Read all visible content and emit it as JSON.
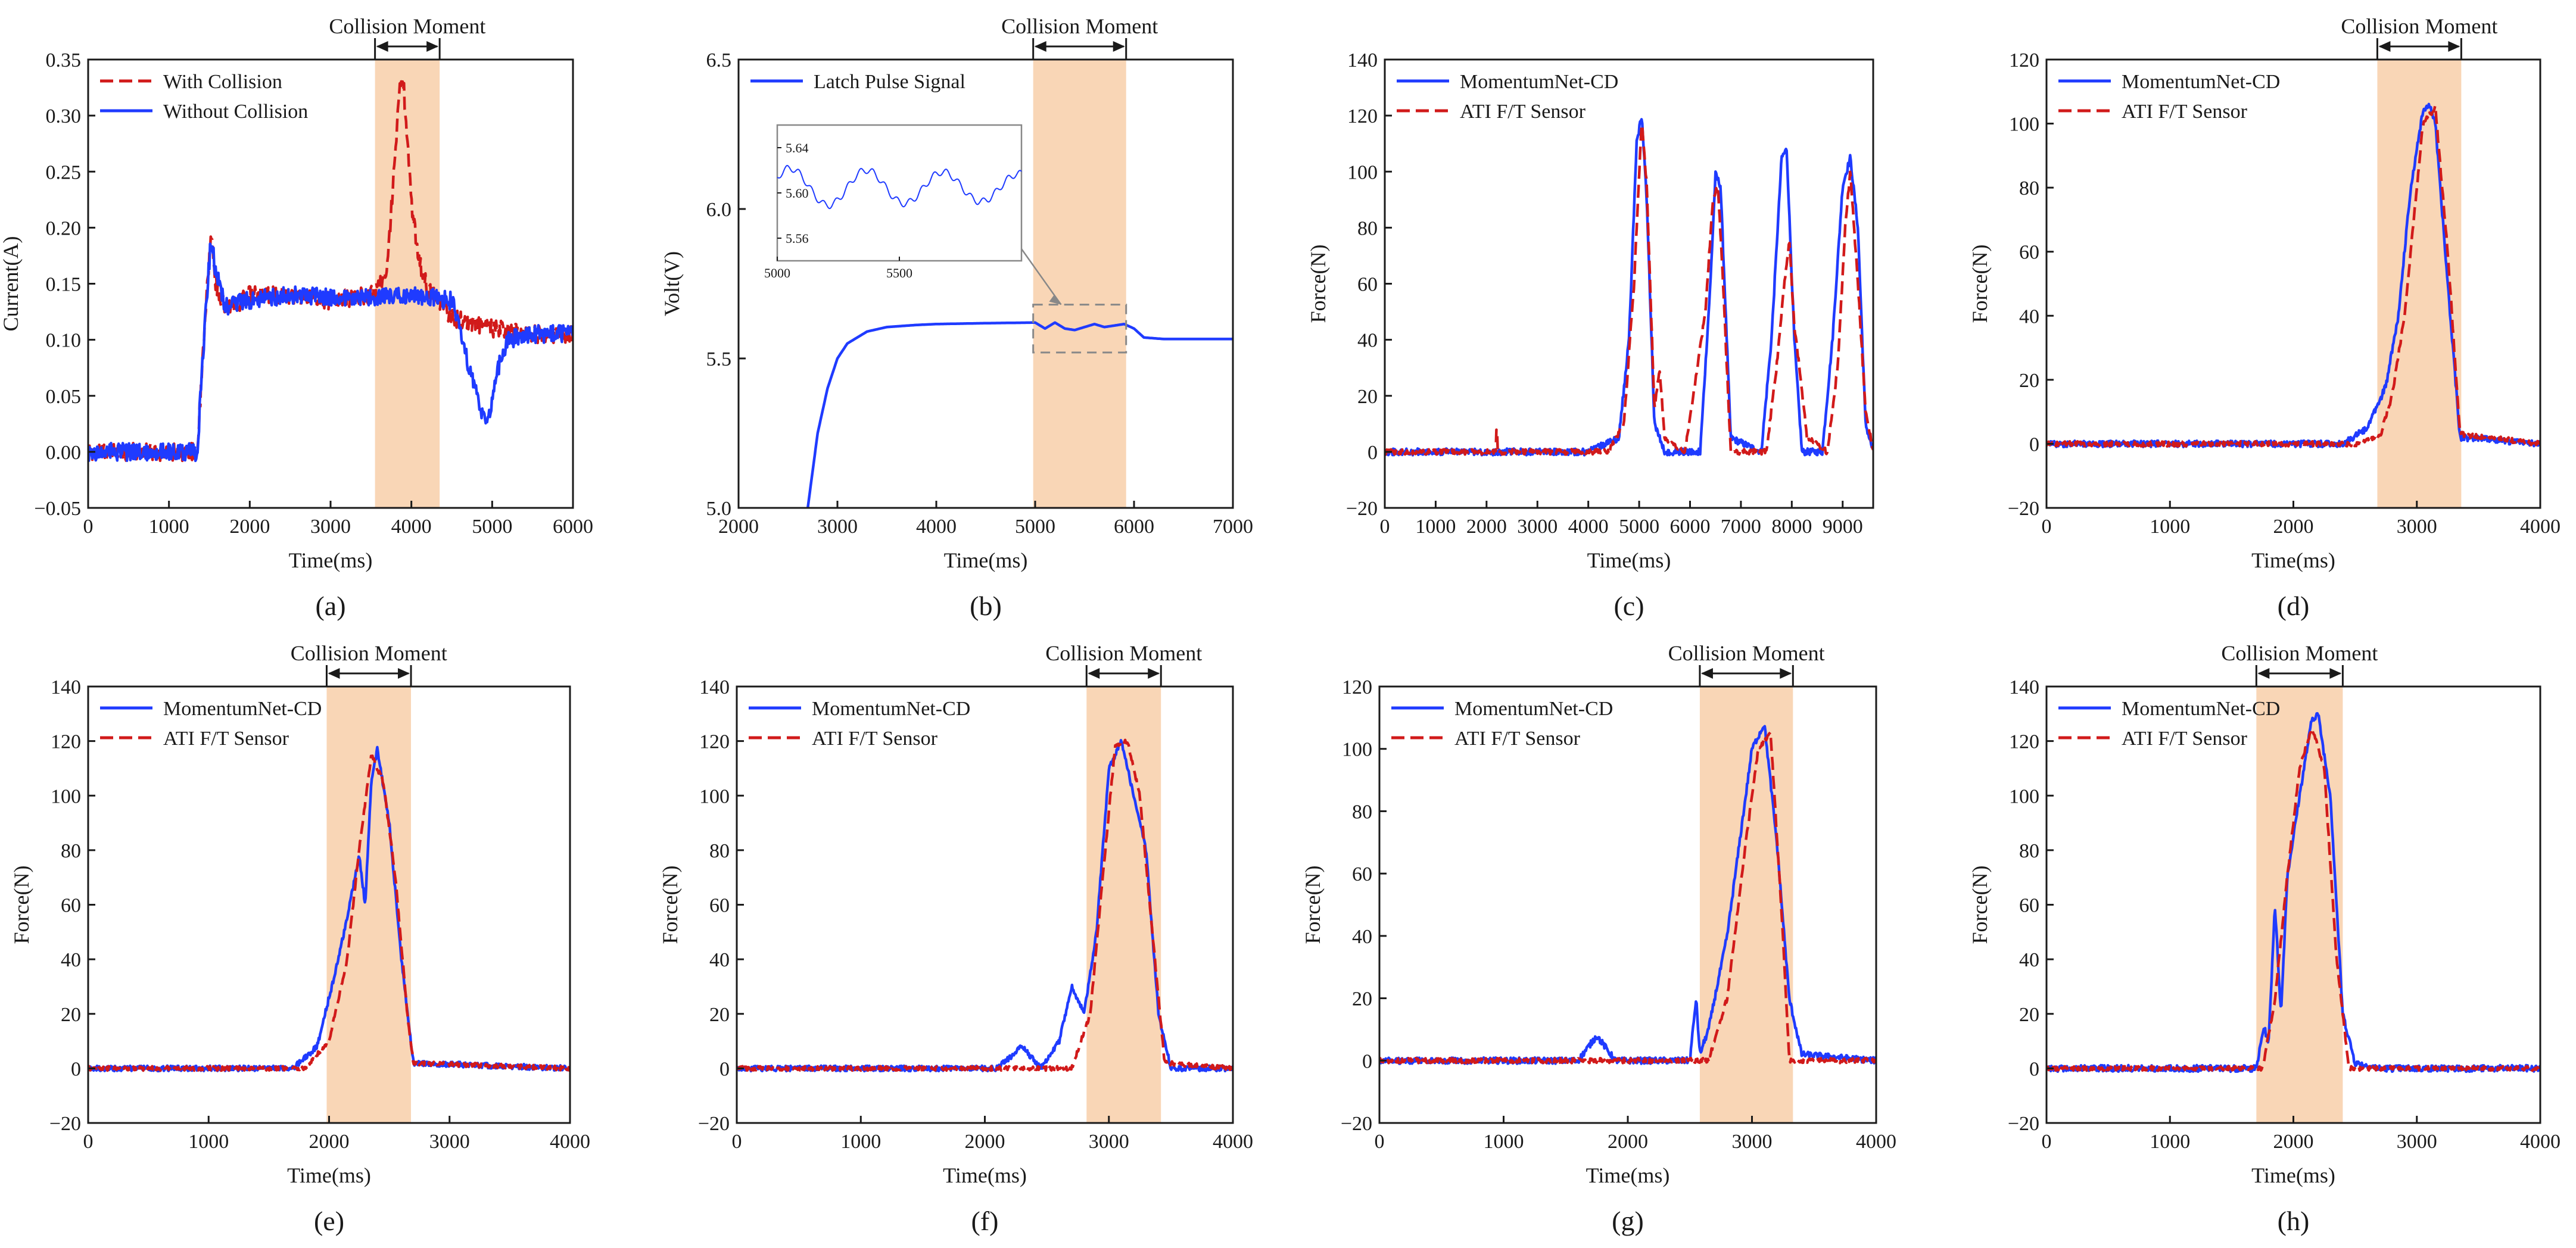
{
  "figure": {
    "background": "#ffffff"
  },
  "colors": {
    "blue": "#1f3bff",
    "red": "#d11a1a",
    "shade": "#f9d6b6",
    "axis": "#1a1a1a",
    "inset_box": "#888888"
  },
  "chart_data": [
    {
      "id": "a",
      "type": "line",
      "panel_label": "(a)",
      "xlabel": "Time(ms)",
      "ylabel": "Current(A)",
      "xlim": [
        0,
        6000
      ],
      "ylim": [
        -0.05,
        0.35
      ],
      "xticks": [
        0,
        1000,
        2000,
        3000,
        4000,
        5000,
        6000
      ],
      "yticks": [
        -0.05,
        0.0,
        0.05,
        0.1,
        0.15,
        0.2,
        0.25,
        0.3,
        0.35
      ],
      "ytick_labels": [
        "−0.05",
        "0.00",
        "0.05",
        "0.10",
        "0.15",
        "0.20",
        "0.25",
        "0.30",
        "0.35"
      ],
      "collision": {
        "label": "Collision Moment",
        "start": 3550,
        "end": 4350
      },
      "legend": {
        "position": "top-left",
        "entries": [
          "With Collision",
          "Without Collision"
        ]
      },
      "series": [
        {
          "name": "With Collision",
          "color": "red",
          "style": "dashed",
          "x": [
            0,
            500,
            1000,
            1350,
            1450,
            1520,
            1580,
            1700,
            2000,
            2500,
            3000,
            3500,
            3700,
            3800,
            3850,
            3900,
            3950,
            4000,
            4100,
            4200,
            4300,
            4500,
            5000,
            5500,
            6000
          ],
          "y": [
            0.0,
            0.0,
            0.0,
            0.0,
            0.12,
            0.195,
            0.15,
            0.125,
            0.14,
            0.14,
            0.135,
            0.14,
            0.16,
            0.27,
            0.32,
            0.33,
            0.28,
            0.22,
            0.17,
            0.145,
            0.14,
            0.12,
            0.11,
            0.105,
            0.105
          ],
          "noise": 0.008
        },
        {
          "name": "Without Collision",
          "color": "blue",
          "style": "solid",
          "x": [
            0,
            500,
            1000,
            1350,
            1450,
            1520,
            1580,
            1700,
            2000,
            2500,
            3000,
            3500,
            4000,
            4500,
            4700,
            4850,
            4950,
            5050,
            5200,
            5500,
            6000
          ],
          "y": [
            0.0,
            0.0,
            0.0,
            0.0,
            0.12,
            0.19,
            0.16,
            0.13,
            0.135,
            0.14,
            0.138,
            0.138,
            0.14,
            0.135,
            0.08,
            0.04,
            0.025,
            0.07,
            0.1,
            0.105,
            0.105
          ],
          "noise": 0.008
        }
      ]
    },
    {
      "id": "b",
      "type": "line",
      "panel_label": "(b)",
      "xlabel": "Time(ms)",
      "ylabel": "Volt(V)",
      "xlim": [
        2000,
        7000
      ],
      "ylim": [
        5.0,
        6.5
      ],
      "xticks": [
        2000,
        3000,
        4000,
        5000,
        6000,
        7000
      ],
      "yticks": [
        5.0,
        5.5,
        6.0,
        6.5
      ],
      "ytick_labels": [
        "5.0",
        "5.5",
        "6.0",
        "6.5"
      ],
      "collision": {
        "label": "Collision Moment",
        "start": 4980,
        "end": 5920
      },
      "legend": {
        "position": "top-left",
        "entries": [
          "Latch Pulse Signal"
        ]
      },
      "series": [
        {
          "name": "Latch Pulse Signal",
          "color": "blue",
          "style": "solid",
          "x": [
            2700,
            2800,
            2900,
            3000,
            3100,
            3300,
            3500,
            3800,
            4000,
            4500,
            5000,
            5100,
            5200,
            5300,
            5400,
            5500,
            5600,
            5700,
            5800,
            5900,
            6000,
            6100,
            6300,
            6600,
            7000
          ],
          "y": [
            5.0,
            5.25,
            5.4,
            5.5,
            5.55,
            5.59,
            5.605,
            5.612,
            5.615,
            5.618,
            5.62,
            5.6,
            5.62,
            5.6,
            5.595,
            5.605,
            5.615,
            5.605,
            5.61,
            5.615,
            5.6,
            5.57,
            5.565,
            5.565,
            5.565
          ],
          "noise": 0
        }
      ],
      "inset": {
        "xlim": [
          5000,
          6000
        ],
        "ylim": [
          5.54,
          5.66
        ],
        "xticks": [
          5000,
          5500
        ],
        "yticks": [
          5.56,
          5.6,
          5.64
        ],
        "ytick_labels": [
          "5.56",
          "5.60",
          "5.64"
        ],
        "zoom_box": {
          "x": [
            4980,
            5920
          ],
          "y": [
            5.52,
            5.68
          ]
        }
      }
    },
    {
      "id": "c",
      "type": "line",
      "panel_label": "(c)",
      "xlabel": "Time(ms)",
      "ylabel": "Force(N)",
      "xlim": [
        0,
        9600
      ],
      "ylim": [
        -20,
        140
      ],
      "xticks": [
        0,
        1000,
        2000,
        3000,
        4000,
        5000,
        6000,
        7000,
        8000,
        9000
      ],
      "yticks": [
        -20,
        0,
        20,
        40,
        60,
        80,
        100,
        120,
        140
      ],
      "ytick_labels": [
        "−20",
        "0",
        "20",
        "40",
        "60",
        "80",
        "100",
        "120",
        "140"
      ],
      "legend": {
        "position": "top-left",
        "entries": [
          "MomentumNet-CD",
          "ATI F/T Sensor"
        ]
      },
      "series": [
        {
          "name": "MomentumNet-CD",
          "color": "blue",
          "style": "solid",
          "x": [
            0,
            4000,
            4600,
            4800,
            4950,
            5050,
            5150,
            5300,
            5500,
            6200,
            6400,
            6500,
            6600,
            6800,
            7400,
            7600,
            7800,
            7900,
            8050,
            8200,
            8600,
            8800,
            9000,
            9150,
            9300,
            9450,
            9600
          ],
          "y": [
            0,
            0,
            5,
            40,
            110,
            120,
            90,
            10,
            0,
            0,
            60,
            99,
            95,
            5,
            0,
            40,
            105,
            108,
            40,
            0,
            0,
            40,
            95,
            105,
            80,
            10,
            0
          ],
          "noise": 1.2
        },
        {
          "name": "ATI F/T Sensor",
          "color": "red",
          "style": "dashed",
          "x": [
            0,
            2180,
            2200,
            2220,
            4400,
            4700,
            4900,
            5050,
            5150,
            5300,
            5400,
            5500,
            5900,
            6050,
            6300,
            6450,
            6550,
            6650,
            6800,
            7500,
            7700,
            7850,
            7950,
            8050,
            8150,
            8300,
            8700,
            8900,
            9050,
            9150,
            9300,
            9450,
            9600
          ],
          "y": [
            0,
            0,
            12,
            0,
            0,
            10,
            60,
            118,
            95,
            15,
            30,
            5,
            0,
            18,
            50,
            90,
            95,
            60,
            0,
            0,
            30,
            60,
            75,
            45,
            30,
            5,
            0,
            30,
            80,
            100,
            60,
            15,
            0
          ],
          "noise": 1.0
        }
      ]
    },
    {
      "id": "d",
      "type": "line",
      "panel_label": "(d)",
      "xlabel": "Time(ms)",
      "ylabel": "Force(N)",
      "xlim": [
        0,
        4000
      ],
      "ylim": [
        -20,
        120
      ],
      "xticks": [
        0,
        1000,
        2000,
        3000,
        4000
      ],
      "yticks": [
        -20,
        0,
        20,
        40,
        60,
        80,
        100,
        120
      ],
      "ytick_labels": [
        "−20",
        "0",
        "20",
        "40",
        "60",
        "80",
        "100",
        "120"
      ],
      "collision": {
        "label": "Collision Moment",
        "start": 2680,
        "end": 3360
      },
      "legend": {
        "position": "top-left",
        "entries": [
          "MomentumNet-CD",
          "ATI F/T Sensor"
        ]
      },
      "series": [
        {
          "name": "MomentumNet-CD",
          "color": "blue",
          "style": "solid",
          "x": [
            0,
            2400,
            2600,
            2750,
            2850,
            2950,
            3050,
            3100,
            3150,
            3250,
            3350,
            4000
          ],
          "y": [
            0,
            0,
            5,
            18,
            40,
            80,
            104,
            106,
            100,
            50,
            2,
            0
          ],
          "noise": 1.0
        },
        {
          "name": "ATI F/T Sensor",
          "color": "red",
          "style": "dashed",
          "x": [
            0,
            2500,
            2700,
            2800,
            2900,
            3000,
            3050,
            3150,
            3250,
            3350,
            4000
          ],
          "y": [
            0,
            0,
            2,
            15,
            40,
            80,
            100,
            105,
            60,
            3,
            0
          ],
          "noise": 0.8
        }
      ]
    },
    {
      "id": "e",
      "type": "line",
      "panel_label": "(e)",
      "xlabel": "Time(ms)",
      "ylabel": "Force(N)",
      "xlim": [
        0,
        4000
      ],
      "ylim": [
        -20,
        140
      ],
      "xticks": [
        0,
        1000,
        2000,
        3000,
        4000
      ],
      "yticks": [
        -20,
        0,
        20,
        40,
        60,
        80,
        100,
        120,
        140
      ],
      "ytick_labels": [
        "−20",
        "0",
        "20",
        "40",
        "60",
        "80",
        "100",
        "120",
        "140"
      ],
      "collision": {
        "label": "Collision Moment",
        "start": 1980,
        "end": 2680
      },
      "legend": {
        "position": "top-left",
        "entries": [
          "MomentumNet-CD",
          "ATI F/T Sensor"
        ]
      },
      "series": [
        {
          "name": "MomentumNet-CD",
          "color": "blue",
          "style": "solid",
          "x": [
            0,
            1700,
            1900,
            2050,
            2150,
            2250,
            2300,
            2350,
            2400,
            2500,
            2600,
            2700,
            4000
          ],
          "y": [
            0,
            0,
            8,
            35,
            55,
            78,
            60,
            105,
            117,
            90,
            40,
            2,
            0
          ],
          "noise": 1.0
        },
        {
          "name": "ATI F/T Sensor",
          "color": "red",
          "style": "dashed",
          "x": [
            0,
            1800,
            2000,
            2150,
            2250,
            2350,
            2450,
            2550,
            2650,
            2700,
            4000
          ],
          "y": [
            0,
            0,
            10,
            40,
            80,
            115,
            105,
            70,
            20,
            2,
            0
          ],
          "noise": 0.8
        }
      ]
    },
    {
      "id": "f",
      "type": "line",
      "panel_label": "(f)",
      "xlabel": "Time(ms)",
      "ylabel": "Force(N)",
      "xlim": [
        0,
        4000
      ],
      "ylim": [
        -20,
        140
      ],
      "xticks": [
        0,
        1000,
        2000,
        3000,
        4000
      ],
      "yticks": [
        -20,
        0,
        20,
        40,
        60,
        80,
        100,
        120,
        140
      ],
      "ytick_labels": [
        "−20",
        "0",
        "20",
        "40",
        "60",
        "80",
        "100",
        "120",
        "140"
      ],
      "collision": {
        "label": "Collision Moment",
        "start": 2820,
        "end": 3420
      },
      "legend": {
        "position": "top-left",
        "entries": [
          "MomentumNet-CD",
          "ATI F/T Sensor"
        ]
      },
      "series": [
        {
          "name": "MomentumNet-CD",
          "color": "blue",
          "style": "solid",
          "x": [
            0,
            2100,
            2300,
            2450,
            2600,
            2700,
            2800,
            2900,
            3000,
            3100,
            3200,
            3300,
            3400,
            3500,
            4000
          ],
          "y": [
            0,
            0,
            8,
            0,
            10,
            30,
            20,
            50,
            110,
            120,
            100,
            80,
            20,
            0,
            0
          ],
          "noise": 1.0
        },
        {
          "name": "ATI F/T Sensor",
          "color": "red",
          "style": "dashed",
          "x": [
            0,
            2700,
            2850,
            2950,
            3050,
            3150,
            3250,
            3350,
            3450,
            4000
          ],
          "y": [
            0,
            0,
            20,
            70,
            118,
            120,
            100,
            50,
            2,
            0
          ],
          "noise": 0.8
        }
      ]
    },
    {
      "id": "g",
      "type": "line",
      "panel_label": "(g)",
      "xlabel": "Time(ms)",
      "ylabel": "Force(N)",
      "xlim": [
        0,
        4000
      ],
      "ylim": [
        -20,
        120
      ],
      "xticks": [
        0,
        1000,
        2000,
        3000,
        4000
      ],
      "yticks": [
        -20,
        0,
        20,
        40,
        60,
        80,
        100,
        120
      ],
      "ytick_labels": [
        "−20",
        "0",
        "20",
        "40",
        "60",
        "80",
        "100",
        "120"
      ],
      "collision": {
        "label": "Collision Moment",
        "start": 2580,
        "end": 3330
      },
      "legend": {
        "position": "top-left",
        "entries": [
          "MomentumNet-CD",
          "ATI F/T Sensor"
        ]
      },
      "series": [
        {
          "name": "MomentumNet-CD",
          "color": "blue",
          "style": "solid",
          "x": [
            0,
            1600,
            1750,
            1900,
            2500,
            2550,
            2580,
            2650,
            2800,
            2900,
            3000,
            3100,
            3200,
            3300,
            3400,
            4000
          ],
          "y": [
            0,
            0,
            8,
            0,
            0,
            20,
            2,
            10,
            40,
            70,
            100,
            108,
            70,
            20,
            2,
            0
          ],
          "noise": 1.0
        },
        {
          "name": "ATI F/T Sensor",
          "color": "red",
          "style": "dashed",
          "x": [
            0,
            2650,
            2800,
            2950,
            3050,
            3150,
            3250,
            3300,
            4000
          ],
          "y": [
            0,
            0,
            20,
            70,
            100,
            105,
            40,
            0,
            0
          ],
          "noise": 0.8
        }
      ]
    },
    {
      "id": "h",
      "type": "line",
      "panel_label": "(h)",
      "xlabel": "Time(ms)",
      "ylabel": "Force(N)",
      "xlim": [
        0,
        4000
      ],
      "ylim": [
        -20,
        140
      ],
      "xticks": [
        0,
        1000,
        2000,
        3000,
        4000
      ],
      "yticks": [
        -20,
        0,
        20,
        40,
        60,
        80,
        100,
        120,
        140
      ],
      "ytick_labels": [
        "−20",
        "0",
        "20",
        "40",
        "60",
        "80",
        "100",
        "120",
        "140"
      ],
      "collision": {
        "label": "Collision Moment",
        "start": 1700,
        "end": 2400
      },
      "legend": {
        "position": "top-left",
        "entries": [
          "MomentumNet-CD",
          "ATI F/T Sensor"
        ]
      },
      "series": [
        {
          "name": "MomentumNet-CD",
          "color": "blue",
          "style": "solid",
          "x": [
            0,
            1700,
            1760,
            1800,
            1850,
            1900,
            1950,
            2050,
            2150,
            2200,
            2300,
            2400,
            2500,
            2700,
            4000
          ],
          "y": [
            0,
            0,
            15,
            10,
            60,
            20,
            70,
            100,
            128,
            130,
            100,
            20,
            2,
            0,
            0
          ],
          "noise": 1.2
        },
        {
          "name": "ATI F/T Sensor",
          "color": "red",
          "style": "dashed",
          "x": [
            0,
            1750,
            1850,
            1950,
            2050,
            2150,
            2250,
            2350,
            2450,
            4000
          ],
          "y": [
            0,
            0,
            25,
            70,
            110,
            125,
            110,
            40,
            0,
            0
          ],
          "noise": 0.8
        }
      ]
    }
  ]
}
